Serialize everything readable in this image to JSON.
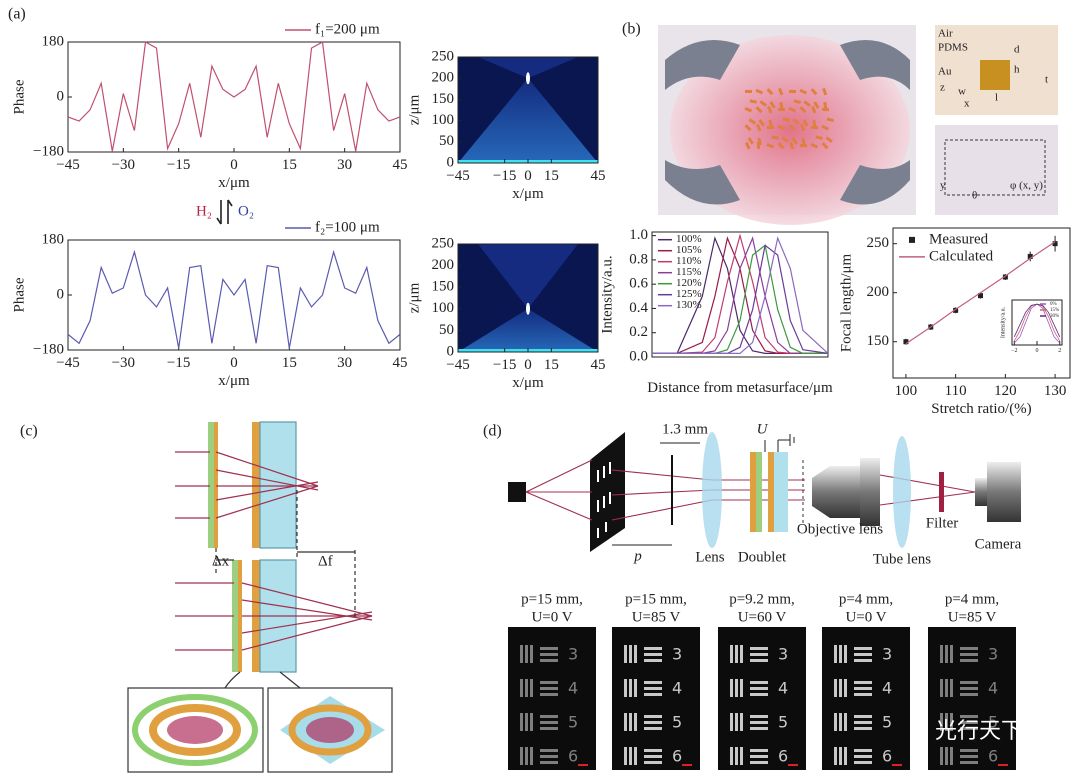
{
  "panel_labels": [
    "(a)",
    "(b)",
    "(c)",
    "(d)"
  ],
  "chart_data": [
    {
      "type": "line",
      "xlabel": "x/μm",
      "ylabel": "Phase",
      "legend": "top-right",
      "x": [
        -45,
        -42,
        -39,
        -36,
        -33,
        -30,
        -27,
        -24,
        -21,
        -18,
        -15,
        -12,
        -9,
        -6,
        -3,
        0,
        3,
        6,
        9,
        12,
        15,
        18,
        21,
        24,
        27,
        30,
        33,
        36,
        39,
        42,
        45
      ],
      "series": [
        {
          "name": "f₁=200 μm",
          "color": "#c0506e",
          "values": [
            -65,
            -79,
            -42,
            45,
            -177,
            11,
            -110,
            180,
            160,
            -169,
            -87,
            45,
            -132,
            101,
            25,
            0,
            25,
            101,
            -132,
            45,
            -87,
            -169,
            160,
            180,
            -110,
            11,
            -177,
            45,
            -42,
            -79,
            -65
          ]
        }
      ],
      "xlim": [
        -45,
        45
      ],
      "ylim": [
        -180,
        180
      ],
      "xticks": [
        {
          "value": -45,
          "label": "−45"
        },
        {
          "value": -30,
          "label": "−30"
        },
        {
          "value": -15,
          "label": "−15"
        },
        0,
        15,
        30,
        45
      ],
      "yticks": [
        {
          "value": -180,
          "label": "−180"
        },
        0,
        180
      ]
    },
    {
      "type": "heatmap",
      "xlabel": "x/μm",
      "ylabel": "z/μm",
      "focus_z": 200,
      "xlim": [
        -45,
        45
      ],
      "ylim": [
        0,
        250
      ],
      "xticks": [
        {
          "value": -45,
          "label": "−45"
        },
        {
          "value": -15,
          "label": "−15"
        },
        0,
        15,
        45
      ],
      "yticks": [
        0,
        50,
        100,
        150,
        200,
        250
      ]
    },
    {
      "type": "line",
      "xlabel": "x/μm",
      "ylabel": "Phase",
      "legend": "top-right",
      "x": [
        -45,
        -42,
        -39,
        -36,
        -33,
        -30,
        -27,
        -24,
        -21,
        -18,
        -15,
        -12,
        -9,
        -6,
        -3,
        0,
        3,
        6,
        9,
        12,
        15,
        18,
        21,
        24,
        27,
        30,
        33,
        36,
        39,
        42,
        45
      ],
      "series": [
        {
          "name": "f₂=100 μm",
          "color": "#5a5ab0",
          "values": [
            -129,
            -158,
            -84,
            90,
            6,
            23,
            141,
            0,
            -39,
            23,
            -174,
            90,
            96,
            -158,
            51,
            0,
            51,
            -158,
            96,
            90,
            -174,
            23,
            -39,
            0,
            141,
            23,
            6,
            90,
            -84,
            -158,
            -129
          ]
        }
      ],
      "xlim": [
        -45,
        45
      ],
      "ylim": [
        -180,
        180
      ],
      "xticks": [
        {
          "value": -45,
          "label": "−45"
        },
        {
          "value": -30,
          "label": "−30"
        },
        {
          "value": -15,
          "label": "−15"
        },
        0,
        15,
        30,
        45
      ],
      "yticks": [
        {
          "value": -180,
          "label": "−180"
        },
        0,
        180
      ]
    },
    {
      "type": "heatmap",
      "xlabel": "x/μm",
      "ylabel": "z/μm",
      "focus_z": 100,
      "xlim": [
        -45,
        45
      ],
      "ylim": [
        0,
        250
      ],
      "xticks": [
        {
          "value": -45,
          "label": "−45"
        },
        {
          "value": -15,
          "label": "−15"
        },
        0,
        15,
        45
      ],
      "yticks": [
        0,
        50,
        100,
        150,
        200,
        250
      ]
    },
    {
      "type": "line",
      "xlabel": "Distance from metasurface/μm",
      "ylabel": "Intensity/a.u.",
      "legend": "top-left",
      "x": [
        0,
        50,
        100,
        125,
        150,
        175,
        200,
        225,
        250,
        275,
        300,
        350
      ],
      "series": [
        {
          "name": "100%",
          "color": "#4a2a6a",
          "values": [
            0.03,
            0.03,
            0.5,
            0.98,
            0.73,
            0.22,
            0.05,
            0.03,
            0.03,
            0.03,
            0.03,
            0.03
          ]
        },
        {
          "name": "105%",
          "color": "#9a1a4a",
          "values": [
            0.03,
            0.03,
            0.12,
            0.5,
            0.98,
            0.73,
            0.22,
            0.05,
            0.03,
            0.03,
            0.03,
            0.03
          ]
        },
        {
          "name": "110%",
          "color": "#c03a70",
          "values": [
            0.03,
            0.03,
            0.04,
            0.16,
            0.62,
            1.0,
            0.62,
            0.16,
            0.04,
            0.03,
            0.03,
            0.03
          ]
        },
        {
          "name": "115%",
          "color": "#8a3e9a",
          "values": [
            0.03,
            0.03,
            0.03,
            0.05,
            0.22,
            0.73,
            0.98,
            0.5,
            0.12,
            0.03,
            0.03,
            0.03
          ]
        },
        {
          "name": "120%",
          "color": "#3c9a3c",
          "values": [
            0.03,
            0.03,
            0.03,
            0.03,
            0.06,
            0.3,
            0.84,
            0.92,
            0.39,
            0.08,
            0.03,
            0.03
          ]
        },
        {
          "name": "125%",
          "color": "#6a3a9a",
          "values": [
            0.03,
            0.03,
            0.03,
            0.03,
            0.03,
            0.08,
            0.39,
            0.92,
            0.84,
            0.3,
            0.06,
            0.03
          ]
        },
        {
          "name": "130%",
          "color": "#8a6ac0",
          "values": [
            0.03,
            0.03,
            0.03,
            0.03,
            0.03,
            0.03,
            0.12,
            0.5,
            0.98,
            0.73,
            0.22,
            0.03
          ]
        }
      ],
      "xlim": [
        0,
        350
      ],
      "ylim": [
        0,
        1.03
      ],
      "yticks": [
        {
          "value": 0,
          "label": "0.0"
        },
        0.2,
        0.4,
        0.6,
        0.8,
        {
          "value": 1,
          "label": "1.0"
        }
      ]
    },
    {
      "type": "line",
      "xlabel": "Stretch ratio/(%)",
      "ylabel": "Focal length/μm",
      "legend": "top-left",
      "x": [
        100,
        105,
        110,
        115,
        120,
        125,
        130
      ],
      "series": [
        {
          "name": "Measured",
          "color": "#222222",
          "marker": "square",
          "values": [
            150,
            165,
            182,
            197,
            216,
            237,
            250
          ],
          "errors": [
            3,
            3,
            3,
            3,
            3,
            5,
            8
          ]
        },
        {
          "name": "Calculated",
          "color": "#c06080",
          "values": [
            148,
            165,
            183,
            200,
            217,
            235,
            252
          ]
        }
      ],
      "xlim": [
        97.4,
        133
      ],
      "ylim": [
        113,
        266
      ],
      "xticks": [
        100,
        110,
        120,
        130
      ],
      "yticks": [
        150,
        200,
        250
      ]
    },
    {
      "type": "line",
      "ylabel": "Intensity/a.u.",
      "legend": "top-right",
      "x": [
        -2,
        -1.5,
        -1,
        -0.5,
        0,
        0.5,
        1,
        1.5,
        2
      ],
      "series": [
        {
          "name": "0%",
          "color": "#9a5ac0",
          "values": [
            0.05,
            0.2,
            0.55,
            0.9,
            1,
            0.9,
            0.55,
            0.2,
            0.05
          ]
        },
        {
          "name": "15%",
          "color": "#d0607a",
          "values": [
            0.1,
            0.35,
            0.7,
            0.95,
            1,
            0.95,
            0.7,
            0.35,
            0.1
          ]
        },
        {
          "name": "30%",
          "color": "#5a2a7a",
          "values": [
            0.2,
            0.5,
            0.8,
            0.97,
            1,
            0.97,
            0.8,
            0.5,
            0.2
          ]
        }
      ],
      "xlim": [
        -2.2,
        2.2
      ],
      "ylim": [
        0,
        1.1
      ],
      "xticks": [
        {
          "value": -2,
          "label": "−2"
        },
        0,
        2
      ]
    }
  ],
  "reaction": {
    "left": "H₂",
    "right": "O₂"
  },
  "panel_b_labels": {
    "air": "Air",
    "pdms": "PDMS",
    "au": "Au",
    "d": "d",
    "h": "h",
    "l": "l",
    "w": "w",
    "t": "t",
    "x": "x",
    "z": "z",
    "y": "y",
    "theta": "θ",
    "point": "φ (x, y)"
  },
  "panel_c_labels": {
    "dx": "Δx",
    "df": "Δf"
  },
  "panel_d_labels": {
    "gap": "1.3 mm",
    "voltage": "U",
    "distance": "p",
    "lens": "Lens",
    "doublet": "Doublet",
    "objective": "Objective lens",
    "filter": "Filter",
    "tube": "Tube lens",
    "camera": "Camera"
  },
  "photo_captions": [
    [
      "p=15 mm,",
      "U=0 V"
    ],
    [
      "p=15 mm,",
      "U=85 V"
    ],
    [
      "p=9.2 mm,",
      "U=60 V"
    ],
    [
      "p=4 mm,",
      "U=0 V"
    ],
    [
      "p=4 mm,",
      "U=85 V"
    ]
  ],
  "target_numbers": [
    "3",
    "4",
    "5",
    "6"
  ],
  "watermark": "光行天下"
}
